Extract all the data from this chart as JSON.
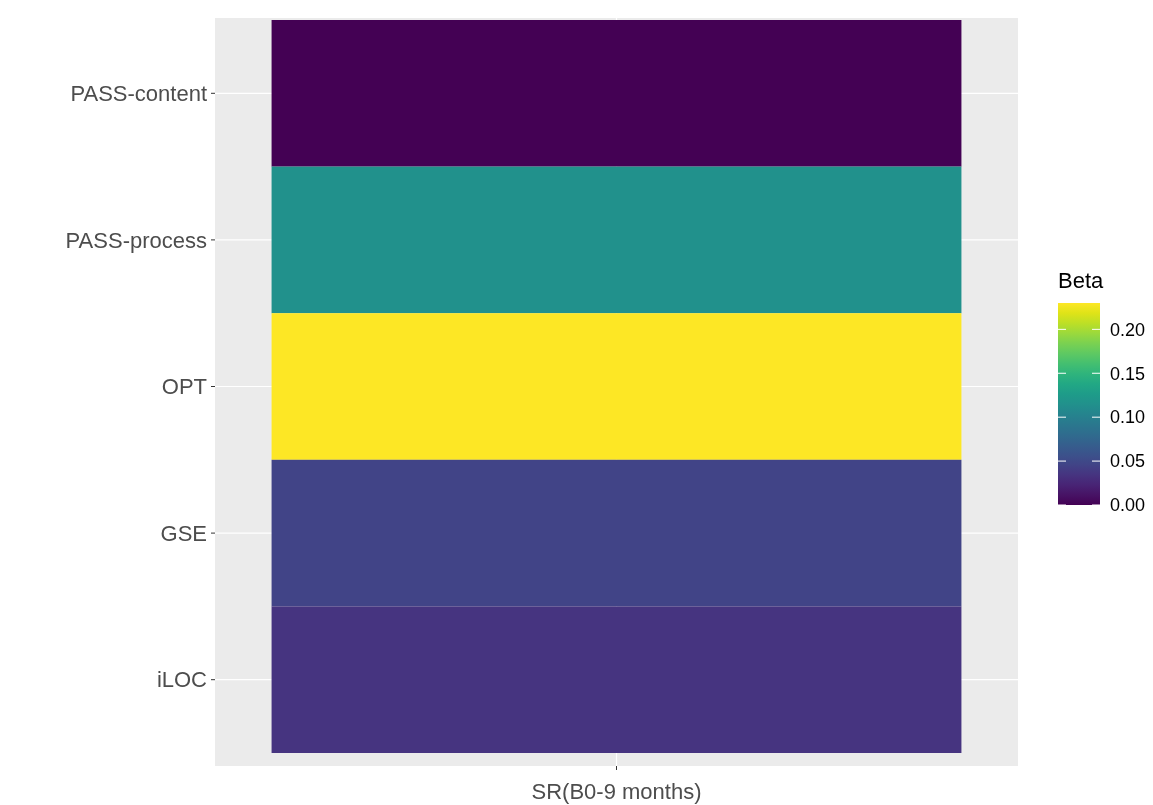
{
  "chart_data": {
    "type": "heatmap",
    "legend_title": "Beta",
    "categories": [
      "SR(B0-9 months)"
    ],
    "y_categories": [
      "PASS-content",
      "PASS-process",
      "OPT",
      "GSE",
      "iLOC"
    ],
    "cells": [
      [
        0
      ],
      [
        0.115
      ],
      [
        0.23
      ],
      [
        0.046
      ],
      [
        0.035
      ]
    ],
    "clim": [
      0,
      0.23
    ],
    "cticks": [
      {
        "value": 0,
        "label": "0.00"
      },
      {
        "value": 0.05,
        "label": "0.05"
      },
      {
        "value": 0.1,
        "label": "0.10"
      },
      {
        "value": 0.15,
        "label": "0.15"
      },
      {
        "value": 0.2,
        "label": "0.20"
      }
    ],
    "grid": true
  }
}
